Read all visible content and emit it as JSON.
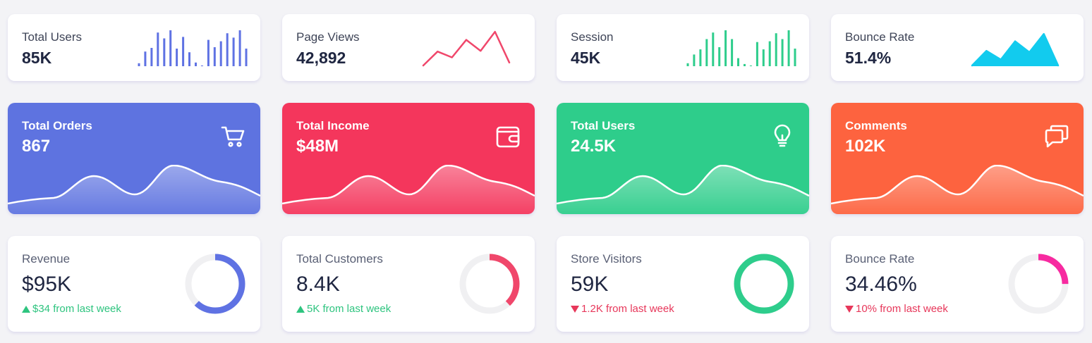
{
  "stats": [
    {
      "label": "Total Users",
      "value": "85K",
      "chart": "bars",
      "color": "#5f72e3",
      "bars": [
        4,
        20,
        25,
        46,
        38,
        49,
        24,
        40,
        19,
        5,
        1,
        36,
        26,
        34,
        45,
        39,
        49,
        24
      ]
    },
    {
      "label": "Page Views",
      "value": "42,892",
      "chart": "line",
      "color": "#f0476b",
      "points": [
        1,
        20,
        12,
        36,
        21,
        47,
        5
      ]
    },
    {
      "label": "Session",
      "value": "45K",
      "chart": "bars",
      "color": "#2ecd8c",
      "bars": [
        4,
        16,
        23,
        37,
        46,
        26,
        49,
        37,
        11,
        3,
        1,
        33,
        23,
        34,
        45,
        37,
        49,
        24
      ]
    },
    {
      "label": "Bounce Rate",
      "value": "51.4%",
      "chart": "area",
      "color": "#12cbee",
      "points": [
        1,
        21,
        9,
        34,
        19,
        44,
        1
      ]
    }
  ],
  "colorCards": [
    {
      "label": "Total Orders",
      "value": "867",
      "icon": "cart-icon",
      "color": "#5e73e0"
    },
    {
      "label": "Total Income",
      "value": "$48M",
      "icon": "wallet-icon",
      "color": "#f4365c"
    },
    {
      "label": "Total Users",
      "value": "24.5K",
      "icon": "lightbulb-icon",
      "color": "#2ecd8b"
    },
    {
      "label": "Comments",
      "value": "102K",
      "icon": "comments-icon",
      "color": "#fd633f"
    }
  ],
  "donutCards": [
    {
      "label": "Revenue",
      "value": "$95K",
      "change": "$34 from last week",
      "direction": "up",
      "percent": 62,
      "color": "#5f72e3"
    },
    {
      "label": "Total Customers",
      "value": "8.4K",
      "change": "5K from last week",
      "direction": "up",
      "percent": 38,
      "color": "#f0476b"
    },
    {
      "label": "Store Visitors",
      "value": "59K",
      "change": "1.2K from last week",
      "direction": "down",
      "percent": 100,
      "color": "#2ecd8c"
    },
    {
      "label": "Bounce Rate",
      "value": "34.46%",
      "change": "10% from last week",
      "direction": "down",
      "percent": 25,
      "color": "#f72aa0"
    }
  ]
}
